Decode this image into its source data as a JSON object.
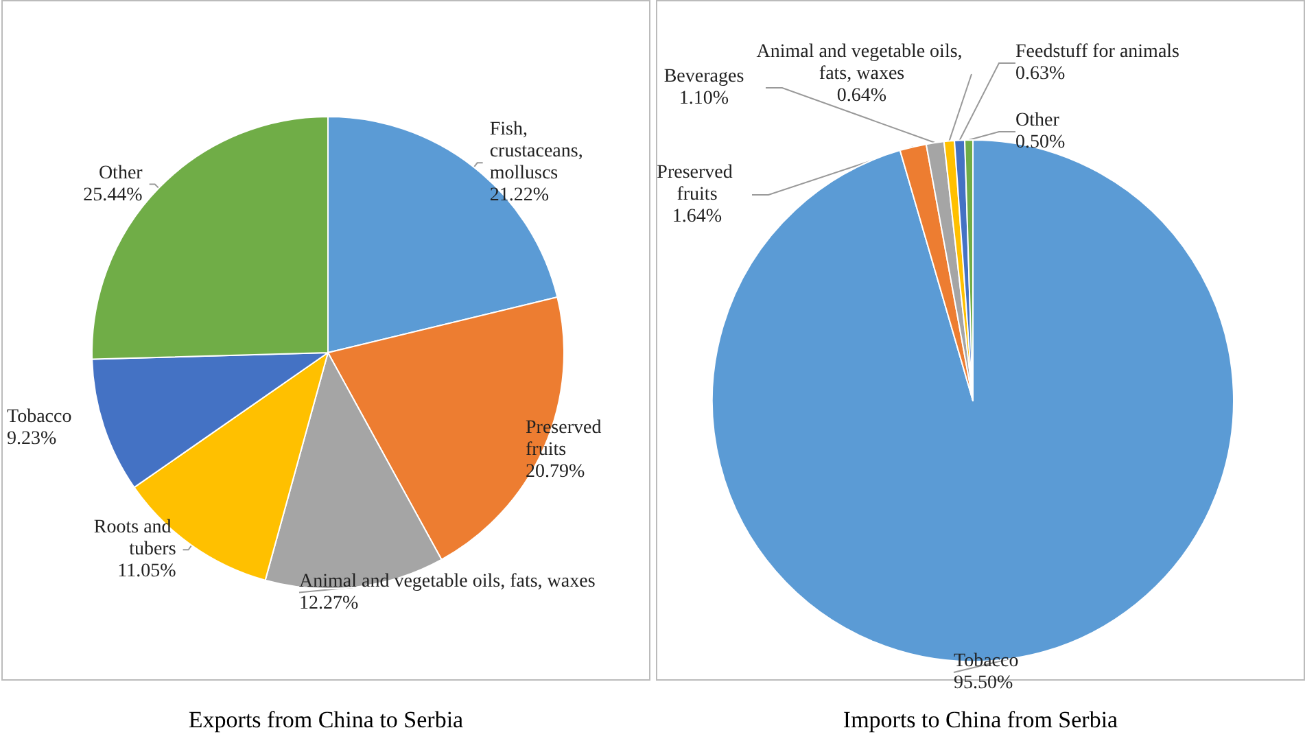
{
  "chart_data": [
    {
      "type": "pie",
      "title": "Exports from China to Serbia",
      "categories": [
        "Fish, crustaceans, molluscs",
        "Preserved fruits",
        "Animal and vegetable oils, fats, waxes",
        "Roots and tubers",
        "Tobacco",
        "Other"
      ],
      "values": [
        21.22,
        20.79,
        12.27,
        11.05,
        9.23,
        25.44
      ],
      "value_labels": [
        "21.22%",
        "20.79%",
        "12.27%",
        "11.05%",
        "9.23%",
        "25.44%"
      ],
      "colors": [
        "#5b9bd5",
        "#ed7d31",
        "#a5a5a5",
        "#ffc000",
        "#4472c4",
        "#70ad47"
      ],
      "legend": false
    },
    {
      "type": "pie",
      "title": "Imports to China from Serbia",
      "categories": [
        "Tobacco",
        "Preserved fruits",
        "Beverages",
        "Animal and vegetable oils, fats, waxes",
        "Feedstuff for animals",
        "Other"
      ],
      "values": [
        95.5,
        1.64,
        1.1,
        0.64,
        0.63,
        0.5
      ],
      "value_labels": [
        "95.50%",
        "1.64%",
        "1.10%",
        "0.64%",
        "0.63%",
        "0.50%"
      ],
      "colors": [
        "#5b9bd5",
        "#ed7d31",
        "#a5a5a5",
        "#ffc000",
        "#4472c4",
        "#70ad47"
      ],
      "legend": false
    }
  ]
}
